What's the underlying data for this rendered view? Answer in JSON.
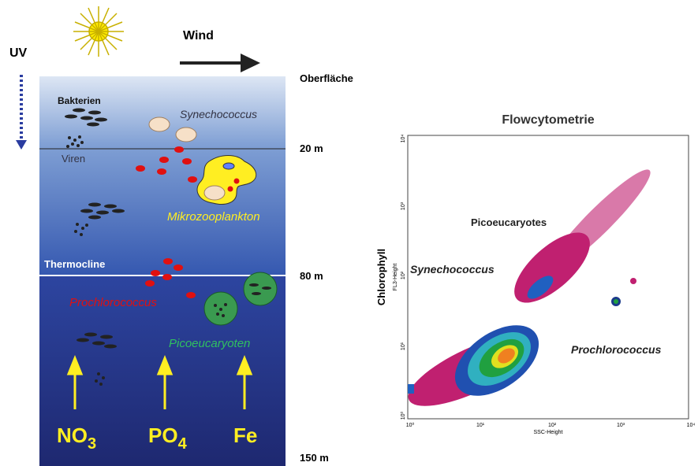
{
  "left": {
    "uv": "UV",
    "wind": "Wind",
    "depths": {
      "surface": "Oberfläche",
      "d20": "20 m",
      "d80": "80 m",
      "d150": "150 m"
    },
    "labels": {
      "bakterien": "Bakterien",
      "synechococcus": "Synechococcus",
      "viren": "Viren",
      "mikrozooplankton": "Mikrozooplankton",
      "thermocline": "Thermocline",
      "prochlorococcus": "Prochlorococcus",
      "picoeucaryoten": "Picoeucaryoten"
    },
    "nutrients": [
      {
        "main": "NO",
        "sub": "3"
      },
      {
        "main": "PO",
        "sub": "4"
      },
      {
        "main": "Fe"
      }
    ]
  },
  "right": {
    "title": "Flowcytometrie",
    "y_title": "Chlorophyll",
    "y_label": "FL3-Height",
    "x_label": "SSC-Height",
    "populations": {
      "picoeucaryotes": "Picoeucaryotes",
      "synechococcus": "Synechococcus",
      "prochlorococcus": "Prochlorococcus"
    },
    "ticks": [
      "10⁰",
      "10¹",
      "10²",
      "10³",
      "10⁴"
    ]
  }
}
